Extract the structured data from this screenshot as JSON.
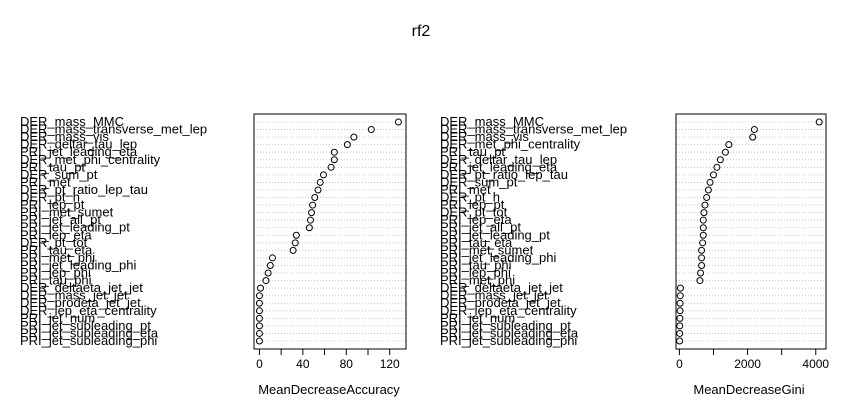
{
  "title": "rf2",
  "chart_data": [
    {
      "type": "dotchart",
      "xlabel": "MeanDecreaseAccuracy",
      "xlim": [
        -5,
        135
      ],
      "xticks": [
        0,
        20,
        40,
        60,
        80,
        100,
        120
      ],
      "xtick_labels": [
        "0",
        "",
        "40",
        "",
        "80",
        "",
        "120"
      ],
      "categories": [
        "DER_mass_MMC",
        "DER_mass_transverse_met_lep",
        "DER_mass_vis",
        "DER_deltar_tau_lep",
        "PRI_jet_leading_eta",
        "DER_met_phi_centrality",
        "PRI_tau_pt",
        "DER_sum_pt",
        "PRI_met",
        "DER_pt_ratio_lep_tau",
        "DER_pt_h",
        "PRI_lep_pt",
        "PRI_met_sumet",
        "PRI_jet_all_pt",
        "PRI_jet_leading_pt",
        "PRI_lep_eta",
        "DER_pt_tot",
        "PRI_tau_eta",
        "PRI_met_phi",
        "PRI_jet_leading_phi",
        "PRI_lep_phi",
        "PRI_tau_phi",
        "DER_deltaeta_jet_jet",
        "DER_mass_jet_jet",
        "DER_prodeta_jet_jet",
        "DER_lep_eta_centrality",
        "PRI_jet_num",
        "PRI_jet_subleading_pt",
        "PRI_jet_subleading_eta",
        "PRI_jet_subleading_phi"
      ],
      "values": [
        128,
        103,
        87,
        81,
        69,
        69,
        66,
        59,
        56,
        54,
        51,
        49,
        48,
        47,
        46,
        34,
        33,
        31,
        12,
        10,
        8,
        6,
        1,
        0,
        0,
        0,
        0,
        0,
        0,
        0
      ]
    },
    {
      "type": "dotchart",
      "xlabel": "MeanDecreaseGini",
      "xlim": [
        -100,
        4300
      ],
      "xticks": [
        0,
        1000,
        2000,
        3000,
        4000
      ],
      "xtick_labels": [
        "0",
        "",
        "2000",
        "",
        "4000"
      ],
      "categories": [
        "DER_mass_MMC",
        "DER_mass_transverse_met_lep",
        "DER_mass_vis",
        "DER_met_phi_centrality",
        "PRI_tau_pt",
        "DER_deltar_tau_lep",
        "PRI_jet_leading_eta",
        "DER_pt_ratio_lep_tau",
        "DER_sum_pt",
        "PRI_met",
        "DER_pt_h",
        "PRI_lep_pt",
        "DER_pt_tot",
        "PRI_lep_eta",
        "PRI_jet_all_pt",
        "PRI_jet_leading_pt",
        "PRI_tau_eta",
        "PRI_met_sumet",
        "PRI_jet_leading_phi",
        "PRI_tau_phi",
        "PRI_lep_phi",
        "PRI_met_phi",
        "DER_deltaeta_jet_jet",
        "DER_mass_jet_jet",
        "DER_prodeta_jet_jet",
        "DER_lep_eta_centrality",
        "PRI_jet_num",
        "PRI_jet_subleading_pt",
        "PRI_jet_subleading_eta",
        "PRI_jet_subleading_phi"
      ],
      "values": [
        4100,
        2200,
        2150,
        1450,
        1350,
        1200,
        1100,
        1000,
        900,
        850,
        800,
        750,
        720,
        700,
        700,
        700,
        680,
        650,
        650,
        650,
        620,
        600,
        30,
        25,
        20,
        20,
        15,
        10,
        10,
        5
      ]
    }
  ]
}
